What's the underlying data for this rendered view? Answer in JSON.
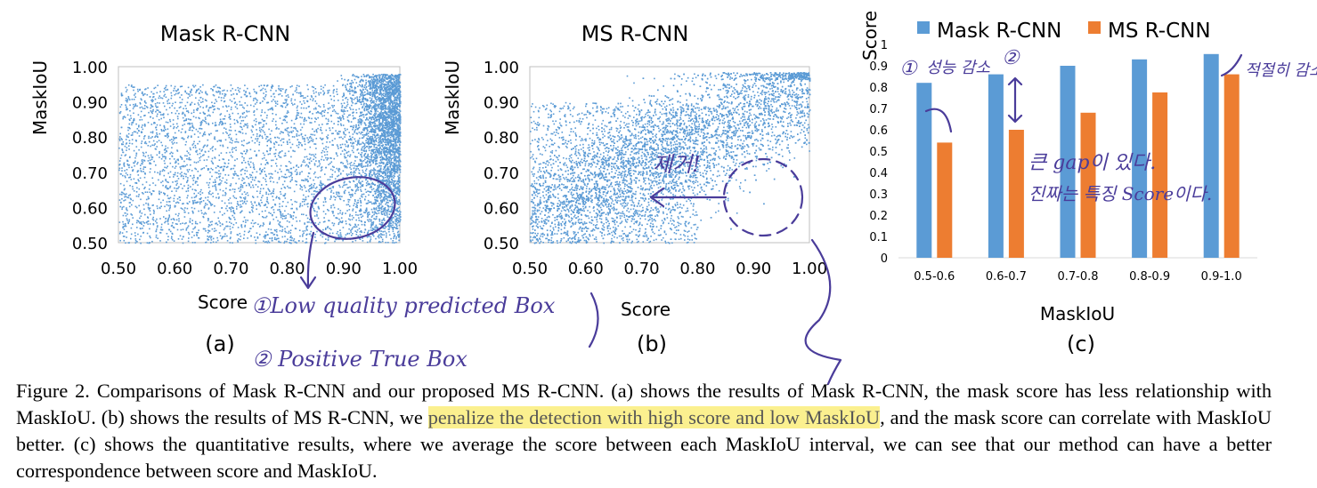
{
  "figure": {
    "panel_a": {
      "title": "Mask R-CNN",
      "ylabel": "MaskIoU",
      "xlabel": "Score",
      "tag": "(a)"
    },
    "panel_b": {
      "title": "MS R-CNN",
      "ylabel": "MaskIoU",
      "xlabel": "Score",
      "tag": "(b)"
    },
    "panel_c": {
      "ylabel": "Score",
      "xlabel": "MaskIoU",
      "tag": "(c)"
    },
    "colors": {
      "mask_rcnn": "#5b9bd5",
      "ms_rcnn": "#ed7d31",
      "scatter": "#5b9bd5",
      "annotation_ink": "#4a3c9a",
      "highlight": "#fbf08f"
    }
  },
  "chart_data": [
    {
      "type": "scatter",
      "title": "Mask R-CNN",
      "xlabel": "Score",
      "ylabel": "MaskIoU",
      "xlim": [
        0.5,
        1.0
      ],
      "ylim": [
        0.5,
        1.0
      ],
      "x_ticks": [
        "0.50",
        "0.60",
        "0.70",
        "0.80",
        "0.90",
        "1.00"
      ],
      "y_ticks": [
        "0.50",
        "0.60",
        "0.70",
        "0.80",
        "0.90",
        "1.00"
      ],
      "grid": false
    },
    {
      "type": "scatter",
      "title": "MS R-CNN",
      "xlabel": "Score",
      "ylabel": "MaskIoU",
      "xlim": [
        0.5,
        1.0
      ],
      "ylim": [
        0.5,
        1.0
      ],
      "x_ticks": [
        "0.50",
        "0.60",
        "0.70",
        "0.80",
        "0.90",
        "1.00"
      ],
      "y_ticks": [
        "0.50",
        "0.60",
        "0.70",
        "0.80",
        "0.90",
        "1.00"
      ],
      "grid": false
    },
    {
      "type": "bar",
      "categories": [
        "0.5-0.6",
        "0.6-0.7",
        "0.7-0.8",
        "0.8-0.9",
        "0.9-1.0"
      ],
      "series": [
        {
          "name": "Mask R-CNN",
          "values": [
            0.82,
            0.86,
            0.9,
            0.93,
            0.955
          ]
        },
        {
          "name": "MS R-CNN",
          "values": [
            0.54,
            0.6,
            0.68,
            0.775,
            0.86
          ]
        }
      ],
      "xlabel": "MaskIoU",
      "ylabel": "Score",
      "ylim": [
        0,
        1
      ],
      "y_ticks": [
        "0",
        "0.1",
        "0.2",
        "0.3",
        "0.4",
        "0.5",
        "0.6",
        "0.7",
        "0.8",
        "0.9",
        "1"
      ],
      "legend": "top",
      "grid": false
    }
  ],
  "annotations": {
    "a_circle_note_1": "①Low quality predicted Box",
    "a_circle_note_2": "② Positive True Box",
    "b_arrow_note": "제거!",
    "c_note_1_num": "①",
    "c_note_1": "성능 감소",
    "c_note_2_num": "②",
    "c_note_3_line1": "큰 gap이 있다.",
    "c_note_3_line2": "진짜는 특징 Score이다.",
    "c_note_4": "적절히 감소"
  },
  "caption": {
    "part1": "Figure 2. Comparisons of Mask R-CNN and our proposed MS R-CNN. (a) shows the results of Mask R-CNN, the mask score has less relationship with MaskIoU. (b) shows the results of MS R-CNN, we ",
    "highlight": "penalize the detection with high score and low MaskIoU",
    "part2": ", and the mask score can correlate with MaskIoU better. (c) shows the quantitative results, where we average the score between each MaskIoU interval, we can see that our method can have a better correspondence between score and MaskIoU."
  }
}
